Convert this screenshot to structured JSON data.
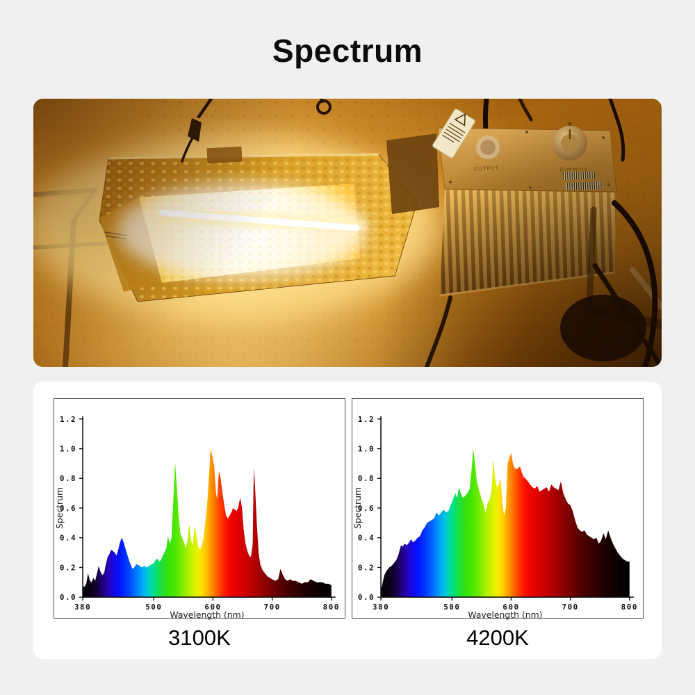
{
  "page": {
    "background_color": "#f0f0f1",
    "card_color": "#ffffff"
  },
  "header": {
    "title": "Spectrum"
  },
  "photo": {
    "ballast_labels": {
      "output": "OUTPUT",
      "dimming": "Dimming"
    }
  },
  "spectrum_gradient": [
    {
      "nm": 380,
      "color": "#030006"
    },
    {
      "nm": 395,
      "color": "#0a0018"
    },
    {
      "nm": 405,
      "color": "#16003f"
    },
    {
      "nm": 415,
      "color": "#21007e"
    },
    {
      "nm": 425,
      "color": "#2404c0"
    },
    {
      "nm": 433,
      "color": "#1508e8"
    },
    {
      "nm": 440,
      "color": "#0511fa"
    },
    {
      "nm": 448,
      "color": "#0023ff"
    },
    {
      "nm": 456,
      "color": "#003cff"
    },
    {
      "nm": 464,
      "color": "#005cff"
    },
    {
      "nm": 472,
      "color": "#0080ff"
    },
    {
      "nm": 480,
      "color": "#00a4f8"
    },
    {
      "nm": 488,
      "color": "#00c4e0"
    },
    {
      "nm": 495,
      "color": "#00d7ae"
    },
    {
      "nm": 502,
      "color": "#04df7e"
    },
    {
      "nm": 510,
      "color": "#17df4c"
    },
    {
      "nm": 518,
      "color": "#2bdf22"
    },
    {
      "nm": 527,
      "color": "#3ce205"
    },
    {
      "nm": 535,
      "color": "#49e800"
    },
    {
      "nm": 545,
      "color": "#71ea00"
    },
    {
      "nm": 555,
      "color": "#9eee00"
    },
    {
      "nm": 565,
      "color": "#c8f200"
    },
    {
      "nm": 572,
      "color": "#e5f300"
    },
    {
      "nm": 578,
      "color": "#f9ea00"
    },
    {
      "nm": 584,
      "color": "#ffd600"
    },
    {
      "nm": 590,
      "color": "#ffbb00"
    },
    {
      "nm": 596,
      "color": "#ff9900"
    },
    {
      "nm": 602,
      "color": "#ff7700"
    },
    {
      "nm": 608,
      "color": "#ff5500"
    },
    {
      "nm": 615,
      "color": "#ff3300"
    },
    {
      "nm": 622,
      "color": "#fb1400"
    },
    {
      "nm": 630,
      "color": "#f00500"
    },
    {
      "nm": 640,
      "color": "#e30000"
    },
    {
      "nm": 652,
      "color": "#d20000"
    },
    {
      "nm": 664,
      "color": "#bd0000"
    },
    {
      "nm": 676,
      "color": "#a60000"
    },
    {
      "nm": 688,
      "color": "#8d0000"
    },
    {
      "nm": 700,
      "color": "#740000"
    },
    {
      "nm": 712,
      "color": "#5d0000"
    },
    {
      "nm": 724,
      "color": "#490000"
    },
    {
      "nm": 736,
      "color": "#380000"
    },
    {
      "nm": 748,
      "color": "#290000"
    },
    {
      "nm": 760,
      "color": "#1c0000"
    },
    {
      "nm": 772,
      "color": "#110000"
    },
    {
      "nm": 784,
      "color": "#090000"
    },
    {
      "nm": 800,
      "color": "#000000"
    }
  ],
  "chart_data": [
    {
      "type": "area",
      "title": "3100K",
      "xlabel": "Wavelength (nm)",
      "ylabel": "Spectrum",
      "xlim": [
        380,
        800
      ],
      "ylim": [
        0,
        1.2
      ],
      "xticks": [
        380,
        500,
        600,
        700,
        800
      ],
      "yticks": [
        0,
        0.2,
        0.4,
        0.6,
        0.8,
        1.0,
        1.2
      ],
      "grid": false,
      "x": [
        380,
        383,
        386,
        389,
        392,
        395,
        398,
        401,
        404,
        407,
        410,
        413,
        416,
        419,
        422,
        425,
        428,
        431,
        434,
        437,
        440,
        443,
        446,
        449,
        452,
        455,
        458,
        461,
        464,
        467,
        470,
        473,
        476,
        480,
        484,
        488,
        492,
        496,
        500,
        503,
        506,
        509,
        512,
        515,
        518,
        521,
        524,
        527,
        530,
        533,
        536,
        539,
        542,
        545,
        548,
        551,
        554,
        557,
        560,
        563,
        566,
        569,
        572,
        575,
        578,
        581,
        584,
        587,
        590,
        593,
        596,
        599,
        602,
        605,
        607,
        610,
        613,
        616,
        619,
        622,
        625,
        628,
        631,
        634,
        637,
        640,
        643,
        646,
        649,
        652,
        655,
        658,
        661,
        664,
        667,
        669,
        671,
        674,
        677,
        680,
        684,
        688,
        692,
        696,
        700,
        705,
        710,
        714,
        718,
        722,
        726,
        730,
        735,
        740,
        745,
        750,
        755,
        760,
        765,
        770,
        775,
        780,
        785,
        790,
        795,
        800
      ],
      "y": [
        0.07,
        0.07,
        0.09,
        0.16,
        0.11,
        0.1,
        0.13,
        0.11,
        0.16,
        0.21,
        0.17,
        0.15,
        0.16,
        0.22,
        0.27,
        0.29,
        0.32,
        0.31,
        0.3,
        0.28,
        0.32,
        0.37,
        0.4,
        0.37,
        0.33,
        0.29,
        0.25,
        0.22,
        0.19,
        0.2,
        0.22,
        0.22,
        0.21,
        0.2,
        0.21,
        0.2,
        0.21,
        0.22,
        0.23,
        0.25,
        0.26,
        0.24,
        0.25,
        0.28,
        0.3,
        0.33,
        0.41,
        0.36,
        0.4,
        0.65,
        0.91,
        0.74,
        0.55,
        0.43,
        0.4,
        0.37,
        0.33,
        0.38,
        0.49,
        0.38,
        0.35,
        0.48,
        0.42,
        0.34,
        0.32,
        0.35,
        0.4,
        0.5,
        0.62,
        0.8,
        1.0,
        0.95,
        0.88,
        0.7,
        0.66,
        0.85,
        0.8,
        0.7,
        0.62,
        0.55,
        0.53,
        0.55,
        0.57,
        0.6,
        0.59,
        0.58,
        0.61,
        0.67,
        0.6,
        0.45,
        0.36,
        0.31,
        0.28,
        0.27,
        0.35,
        0.87,
        0.75,
        0.5,
        0.3,
        0.22,
        0.18,
        0.16,
        0.14,
        0.13,
        0.12,
        0.11,
        0.12,
        0.19,
        0.15,
        0.12,
        0.11,
        0.12,
        0.11,
        0.11,
        0.1,
        0.09,
        0.1,
        0.1,
        0.12,
        0.11,
        0.1,
        0.1,
        0.1,
        0.09,
        0.09,
        0.08
      ]
    },
    {
      "type": "area",
      "title": "4200K",
      "xlabel": "Wavelength (nm)",
      "ylabel": "Spectrum",
      "xlim": [
        380,
        800
      ],
      "ylim": [
        0,
        1.2
      ],
      "xticks": [
        380,
        500,
        600,
        700,
        800
      ],
      "yticks": [
        0,
        0.2,
        0.4,
        0.6,
        0.8,
        1.0,
        1.2
      ],
      "grid": false,
      "x": [
        380,
        383,
        386,
        390,
        394,
        398,
        402,
        406,
        410,
        414,
        417,
        420,
        424,
        428,
        431,
        434,
        438,
        442,
        446,
        450,
        454,
        458,
        462,
        466,
        470,
        474,
        478,
        482,
        486,
        490,
        494,
        498,
        502,
        506,
        509,
        512,
        515,
        518,
        522,
        526,
        530,
        533,
        536,
        539,
        542,
        546,
        550,
        554,
        557,
        560,
        564,
        567,
        570,
        573,
        576,
        579,
        582,
        585,
        588,
        591,
        594,
        597,
        600,
        603,
        606,
        609,
        612,
        615,
        618,
        621,
        624,
        628,
        632,
        636,
        640,
        644,
        648,
        652,
        656,
        660,
        664,
        668,
        672,
        676,
        680,
        684,
        688,
        692,
        696,
        700,
        704,
        708,
        712,
        716,
        720,
        724,
        728,
        732,
        736,
        740,
        744,
        748,
        752,
        756,
        760,
        764,
        768,
        772,
        776,
        780,
        784,
        788,
        792,
        796,
        800
      ],
      "y": [
        0.04,
        0.1,
        0.15,
        0.18,
        0.2,
        0.21,
        0.23,
        0.25,
        0.29,
        0.35,
        0.34,
        0.36,
        0.35,
        0.37,
        0.39,
        0.37,
        0.38,
        0.4,
        0.41,
        0.45,
        0.47,
        0.5,
        0.51,
        0.52,
        0.53,
        0.57,
        0.55,
        0.57,
        0.59,
        0.57,
        0.58,
        0.62,
        0.66,
        0.7,
        0.67,
        0.74,
        0.7,
        0.67,
        0.68,
        0.7,
        0.73,
        0.85,
        1.0,
        0.9,
        0.78,
        0.72,
        0.66,
        0.62,
        0.57,
        0.63,
        0.66,
        0.72,
        0.93,
        0.8,
        0.74,
        0.76,
        0.8,
        0.65,
        0.55,
        0.6,
        0.9,
        0.94,
        0.97,
        0.9,
        0.87,
        0.86,
        0.87,
        0.88,
        0.84,
        0.81,
        0.8,
        0.78,
        0.76,
        0.74,
        0.73,
        0.75,
        0.71,
        0.72,
        0.73,
        0.74,
        0.71,
        0.76,
        0.74,
        0.73,
        0.72,
        0.78,
        0.7,
        0.66,
        0.63,
        0.62,
        0.58,
        0.52,
        0.47,
        0.45,
        0.44,
        0.45,
        0.42,
        0.41,
        0.4,
        0.39,
        0.4,
        0.36,
        0.38,
        0.43,
        0.39,
        0.45,
        0.4,
        0.36,
        0.33,
        0.3,
        0.28,
        0.26,
        0.25,
        0.24,
        0.24
      ]
    }
  ]
}
